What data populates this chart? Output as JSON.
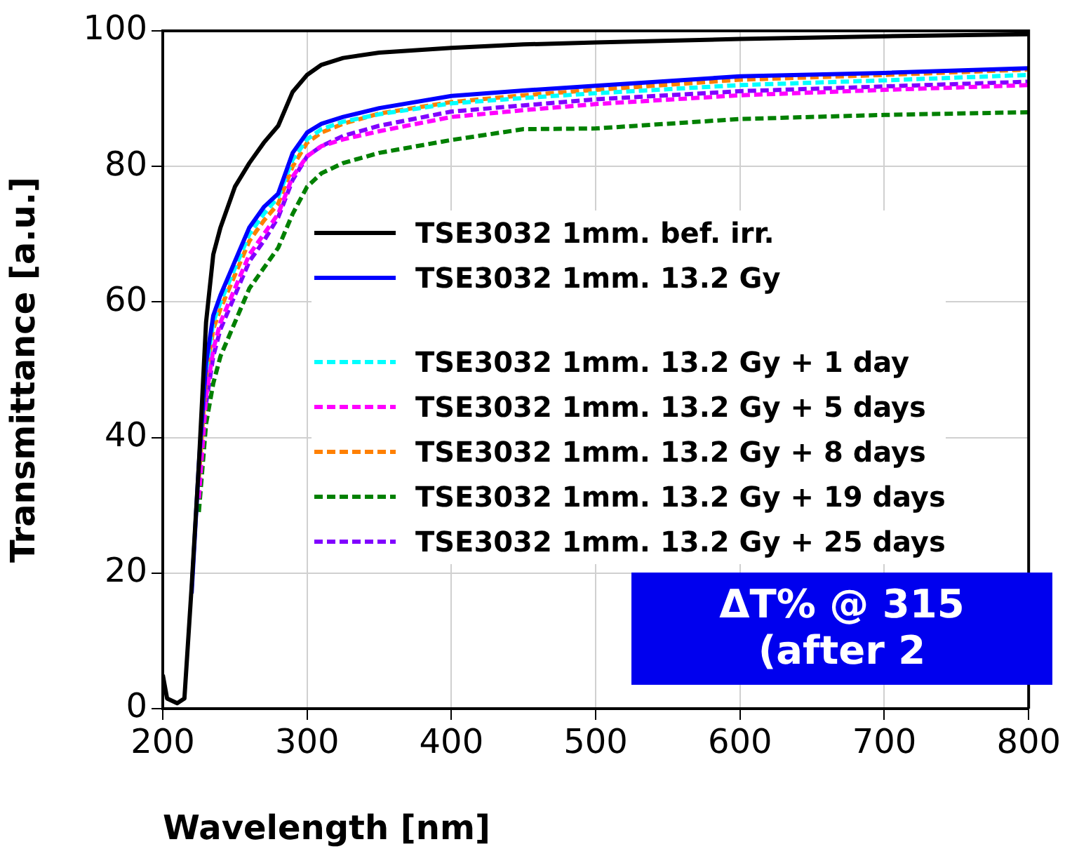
{
  "chart_data": {
    "type": "line",
    "xlabel": "Wavelength [nm]",
    "ylabel": "Transmittance [a.u.]",
    "x": [
      200,
      203,
      210,
      215,
      220,
      225,
      230,
      235,
      240,
      250,
      260,
      270,
      280,
      290,
      300,
      310,
      325,
      350,
      400,
      450,
      500,
      600,
      700,
      800
    ],
    "series": [
      {
        "name": "TSE3032 1mm. bef. irr.",
        "color": "#000000",
        "line_style": "solid",
        "values": [
          5,
          1.5,
          0.8,
          1.5,
          18,
          36,
          57,
          67,
          71,
          77,
          80.5,
          83.5,
          86,
          91,
          93.5,
          95,
          96,
          96.8,
          97.5,
          98,
          98.3,
          98.8,
          99.2,
          99.5
        ]
      },
      {
        "name": "TSE3032 1mm. 13.2 Gy",
        "color": "#0000ff",
        "line_style": "solid",
        "values": [
          null,
          null,
          null,
          null,
          17,
          36,
          51,
          58,
          61,
          66,
          71,
          74,
          76,
          82,
          85,
          86.3,
          87.3,
          88.6,
          90.4,
          91.2,
          91.9,
          93.3,
          93.8,
          94.5
        ]
      },
      {
        "name": "TSE3032 1mm. 13.2 Gy + 1 day",
        "color": "#00ffff",
        "line_style": "dashed",
        "values": [
          null,
          null,
          null,
          null,
          null,
          null,
          50,
          57,
          60,
          65,
          70,
          73,
          75.5,
          81,
          84,
          85.5,
          86.6,
          87.7,
          89.3,
          90.1,
          90.8,
          92,
          92.7,
          93.5
        ]
      },
      {
        "name": "TSE3032 1mm. 13.2 Gy + 5 days",
        "color": "#ff00ff",
        "line_style": "dashed",
        "values": [
          null,
          null,
          null,
          null,
          null,
          31,
          46,
          53,
          57,
          62,
          67,
          70,
          73,
          78.5,
          81.5,
          83,
          84,
          85.2,
          87.3,
          88.3,
          89.2,
          90.5,
          91.3,
          92
        ]
      },
      {
        "name": "TSE3032 1mm. 13.2 Gy + 8 days",
        "color": "#ff8000",
        "line_style": "dashed",
        "values": [
          null,
          null,
          null,
          null,
          null,
          34,
          49,
          56,
          59,
          64,
          69,
          72,
          74.5,
          80,
          83.5,
          85,
          86.3,
          87.8,
          89.5,
          90.5,
          91.3,
          92.8,
          93.5,
          94.3
        ]
      },
      {
        "name": "TSE3032 1mm. 13.2 Gy + 19 days",
        "color": "#008000",
        "line_style": "dashed",
        "values": [
          null,
          null,
          null,
          null,
          null,
          29,
          42,
          48,
          52,
          57,
          62,
          65,
          68,
          73,
          77,
          79,
          80.5,
          82,
          83.9,
          85.5,
          85.6,
          87,
          87.6,
          88
        ]
      },
      {
        "name": "TSE3032 1mm. 13.2 Gy + 25 days",
        "color": "#8000ff",
        "line_style": "dashed",
        "values": [
          null,
          null,
          null,
          null,
          null,
          null,
          45,
          52,
          56,
          61,
          66,
          69,
          72.5,
          78,
          81.5,
          83,
          84.5,
          86,
          88.1,
          89,
          89.9,
          91.1,
          91.8,
          92.5
        ]
      }
    ],
    "xlim": [
      200,
      800
    ],
    "xticks": [
      200,
      300,
      400,
      500,
      600,
      700,
      800
    ],
    "ylim": [
      0,
      100
    ],
    "yticks": [
      0,
      20,
      40,
      60,
      80,
      100
    ],
    "grid": true,
    "legend": "right",
    "annotations": [
      "ΔT% @ 315",
      "(after 2"
    ]
  }
}
